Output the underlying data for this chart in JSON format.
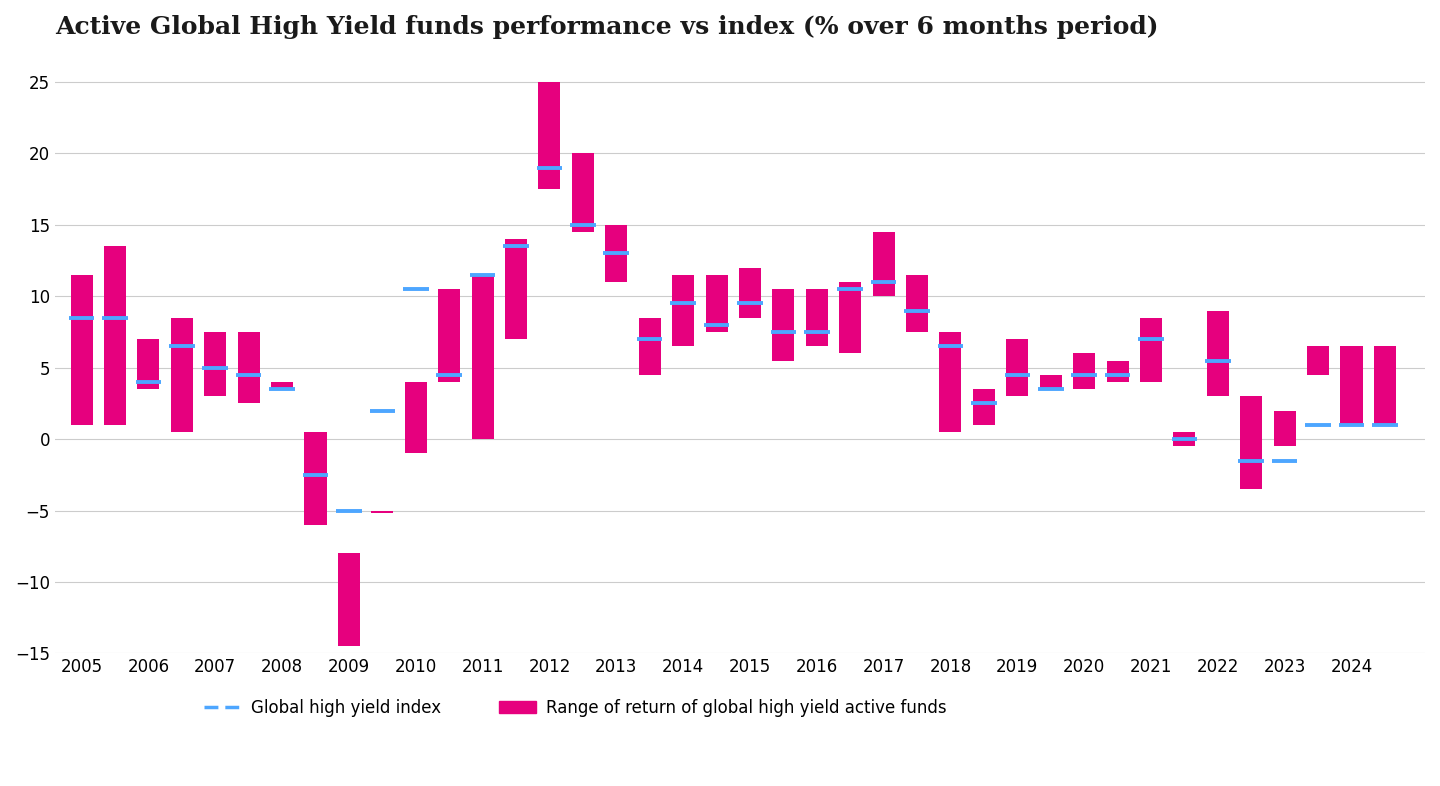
{
  "title": "Active Global High Yield funds performance vs index (% over 6 months period)",
  "background_color": "#ffffff",
  "bar_color": "#E6007E",
  "index_color": "#4DA6FF",
  "x_positions": [
    2005.0,
    2005.5,
    2006.0,
    2006.5,
    2007.0,
    2007.5,
    2008.0,
    2008.5,
    2009.0,
    2009.5,
    2010.0,
    2010.5,
    2011.0,
    2011.5,
    2012.0,
    2012.5,
    2013.0,
    2013.5,
    2014.0,
    2014.5,
    2015.0,
    2015.5,
    2016.0,
    2016.5,
    2017.0,
    2017.5,
    2018.0,
    2018.5,
    2019.0,
    2019.5,
    2020.0,
    2020.5,
    2021.0,
    2021.5,
    2022.0,
    2022.5,
    2023.0,
    2023.5,
    2024.0,
    2024.5
  ],
  "bar_low": [
    1.0,
    1.0,
    3.5,
    0.5,
    3.0,
    2.5,
    3.5,
    -6.0,
    -14.5,
    -5.2,
    -1.0,
    4.0,
    0.0,
    7.0,
    17.5,
    14.5,
    11.0,
    4.5,
    6.5,
    7.5,
    8.5,
    5.5,
    6.5,
    6.0,
    10.0,
    7.5,
    0.5,
    1.0,
    3.0,
    3.5,
    3.5,
    4.0,
    4.0,
    -0.5,
    3.0,
    -3.5,
    -0.5,
    4.5,
    1.0,
    1.0
  ],
  "bar_high": [
    11.5,
    13.5,
    7.0,
    8.5,
    7.5,
    7.5,
    4.0,
    0.5,
    -8.0,
    -5.0,
    4.0,
    10.5,
    11.5,
    14.0,
    25.0,
    20.0,
    15.0,
    8.5,
    11.5,
    11.5,
    12.0,
    10.5,
    10.5,
    11.0,
    14.5,
    11.5,
    7.5,
    3.5,
    7.0,
    4.5,
    6.0,
    5.5,
    8.5,
    0.5,
    9.0,
    3.0,
    2.0,
    6.5,
    6.5,
    6.5
  ],
  "index_val": [
    8.5,
    8.5,
    4.0,
    6.5,
    5.0,
    4.5,
    3.5,
    -2.5,
    -5.0,
    2.0,
    10.5,
    4.5,
    11.5,
    13.5,
    19.0,
    15.0,
    13.0,
    7.0,
    9.5,
    8.0,
    9.5,
    7.5,
    7.5,
    10.5,
    11.0,
    9.0,
    6.5,
    2.5,
    4.5,
    3.5,
    4.5,
    4.5,
    7.0,
    0.0,
    5.5,
    -1.5,
    -1.5,
    1.0,
    1.0,
    1.0
  ],
  "ylim": [
    -15,
    27
  ],
  "yticks": [
    -15,
    -10,
    -5,
    0,
    5,
    10,
    15,
    20,
    25
  ],
  "xlim": [
    2004.6,
    2025.1
  ],
  "xtick_labels": [
    "2005",
    "2006",
    "2007",
    "2008",
    "2009",
    "2010",
    "2011",
    "2012",
    "2013",
    "2014",
    "2015",
    "2016",
    "2017",
    "2018",
    "2019",
    "2020",
    "2021",
    "2022",
    "2023",
    "2024"
  ],
  "xtick_positions": [
    2005,
    2006,
    2007,
    2008,
    2009,
    2010,
    2011,
    2012,
    2013,
    2014,
    2015,
    2016,
    2017,
    2018,
    2019,
    2020,
    2021,
    2022,
    2023,
    2024
  ],
  "legend_index_label": "Global high yield index",
  "legend_range_label": "Range of return of global high yield active funds"
}
